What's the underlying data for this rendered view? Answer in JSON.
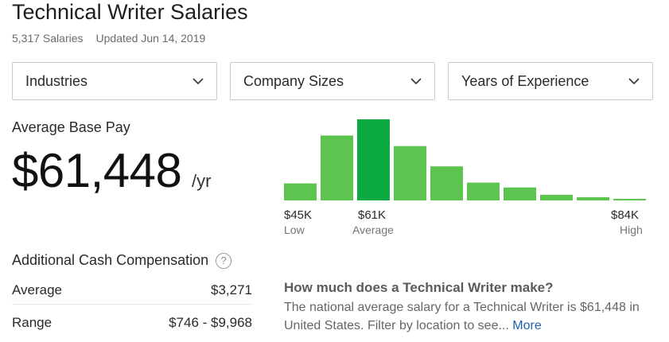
{
  "header": {
    "title": "Technical Writer Salaries",
    "salaries_count": "5,317 Salaries",
    "updated": "Updated Jun 14, 2019"
  },
  "filters": [
    {
      "label": "Industries",
      "icon": "chevron-down-icon"
    },
    {
      "label": "Company Sizes",
      "icon": "chevron-down-icon"
    },
    {
      "label": "Years of Experience",
      "icon": "chevron-down-icon"
    }
  ],
  "pay": {
    "label": "Average Base Pay",
    "amount": "$61,448",
    "unit": "/yr"
  },
  "chart_data": {
    "type": "bar",
    "title": "",
    "values": [
      21,
      80,
      100,
      67,
      42,
      22,
      16,
      7,
      4,
      2
    ],
    "highlight_index": 2,
    "colors": {
      "bar": "#5cc44f",
      "highlight": "#0caa41"
    },
    "axis_labels": [
      {
        "value": "$45K",
        "sub": "Low"
      },
      {
        "value": "$61K",
        "sub": "Average"
      },
      {
        "value": "$84K",
        "sub": "High"
      }
    ]
  },
  "additional": {
    "title": "Additional Cash Compensation",
    "help_icon": "question-circle-icon",
    "help_glyph": "?",
    "rows": [
      {
        "label": "Average",
        "value": "$3,271"
      },
      {
        "label": "Range",
        "value": "$746 - $9,968"
      }
    ]
  },
  "faq": {
    "question": "How much does a Technical Writer make?",
    "answer": "The national average salary for a Technical Writer is $61,448 in United States. Filter by location to see...",
    "more": "More"
  }
}
